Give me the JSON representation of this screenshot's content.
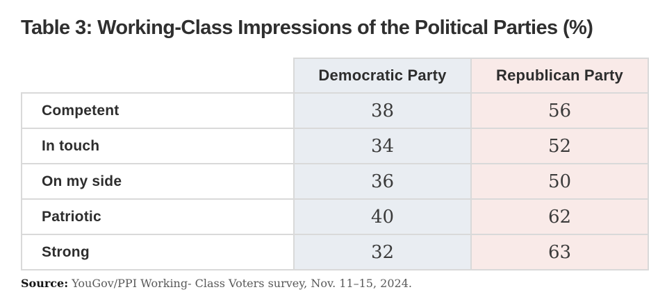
{
  "title": "Table 3: Working-Class Impressions of the Political Parties (%)",
  "chart_data": {
    "type": "table",
    "title": "Table 3: Working-Class Impressions of the Political Parties (%)",
    "categories": [
      "Competent",
      "In touch",
      "On my side",
      "Patriotic",
      "Strong"
    ],
    "series": [
      {
        "name": "Democratic Party",
        "values": [
          38,
          34,
          36,
          40,
          32
        ]
      },
      {
        "name": "Republican Party",
        "values": [
          56,
          52,
          50,
          62,
          63
        ]
      }
    ],
    "source": "Source: YouGov/PPI Working- Class Voters survey, Nov. 11–15, 2024."
  },
  "source": {
    "label": "Source:",
    "text": " YouGov/PPI Working- Class Voters survey, Nov. 11–15, 2024."
  },
  "colors": {
    "democratic_bg": "#e9edf2",
    "republican_bg": "#f9eae8",
    "border": "#d9d9d9",
    "title_text": "#2f2f2f",
    "value_text": "#3b3b3b",
    "source_text": "#595959"
  }
}
